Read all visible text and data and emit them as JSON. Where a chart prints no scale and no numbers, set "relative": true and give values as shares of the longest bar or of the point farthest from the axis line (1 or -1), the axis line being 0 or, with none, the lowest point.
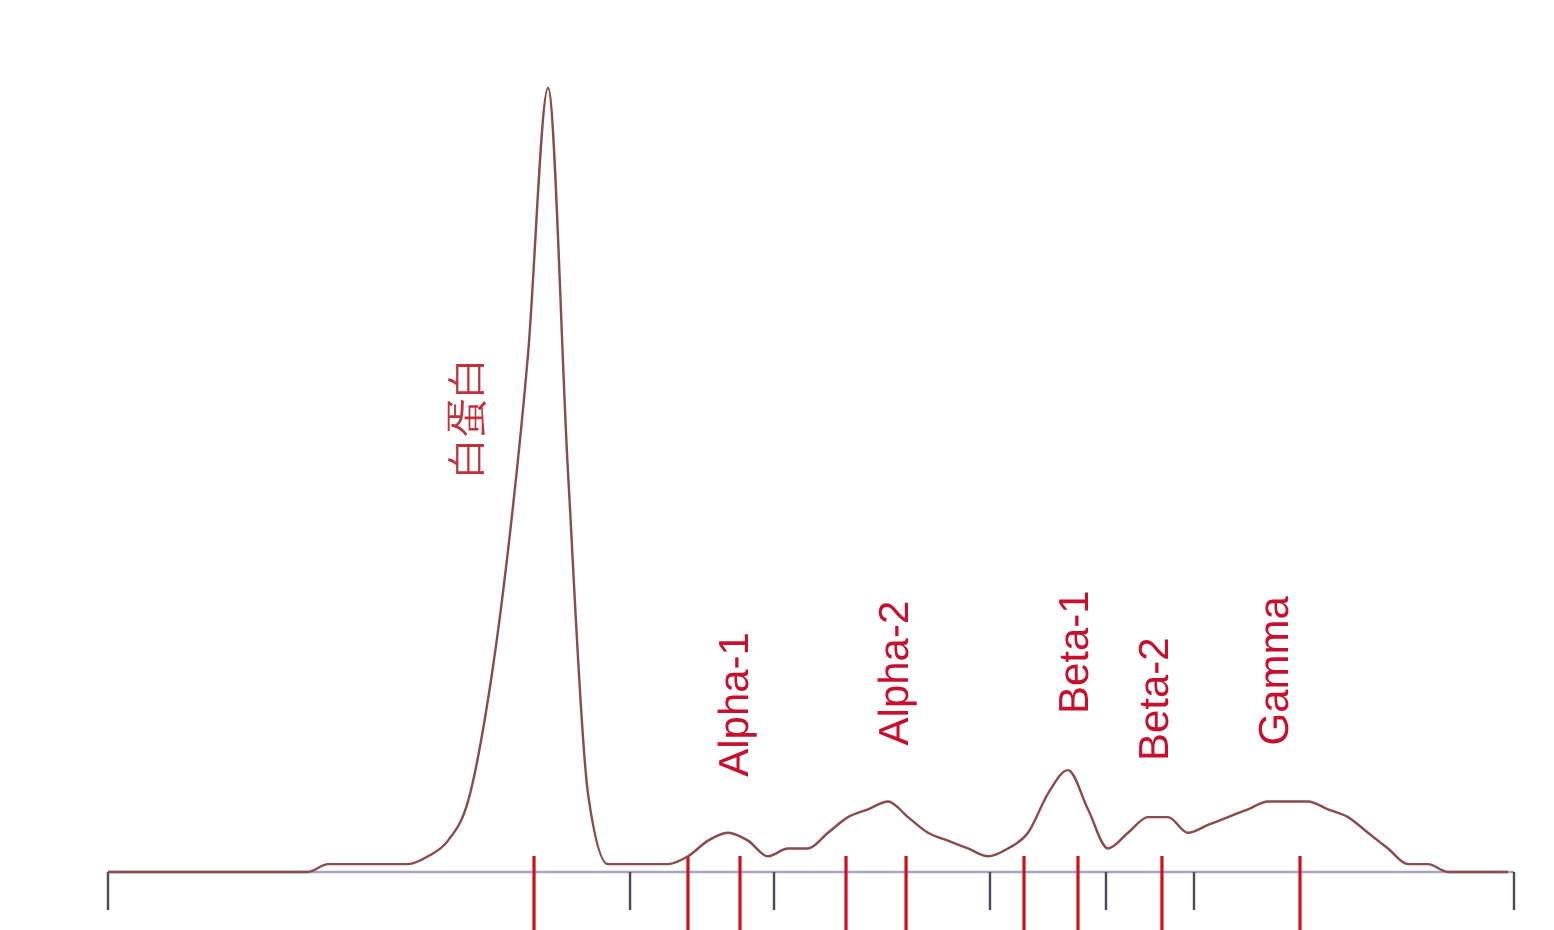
{
  "chart_data": {
    "type": "line",
    "relative": true,
    "categories": [
      null,
      null,
      null,
      null,
      null,
      null,
      null,
      null,
      null,
      null,
      null,
      null,
      null,
      null,
      null,
      null,
      null,
      null,
      null,
      null,
      null,
      null,
      null,
      null,
      null,
      null,
      null,
      null,
      null,
      null,
      null,
      null,
      null,
      null,
      null,
      null,
      null,
      null,
      null,
      null,
      null,
      null,
      null,
      null,
      null,
      null,
      null,
      null,
      null,
      null,
      null,
      null,
      null,
      null,
      null,
      null,
      null,
      null,
      null,
      null,
      null,
      null,
      null,
      null,
      null,
      null,
      null,
      null,
      null,
      null,
      null
    ],
    "series": [
      {
        "color": "#8a4b4b",
        "values": [
          0,
          0,
          0,
          0,
          0,
          0,
          0,
          0,
          0,
          0,
          0,
          0.01,
          0.01,
          0.01,
          0.01,
          0.01,
          0.02,
          0.04,
          0.09,
          0.22,
          0.41,
          0.66,
          1,
          0.51,
          0.1,
          0.01,
          0.01,
          0.01,
          0.01,
          0.02,
          0.04,
          0.05,
          0.04,
          0.02,
          0.03,
          0.03,
          0.05,
          0.07,
          0.08,
          0.09,
          0.07,
          0.05,
          0.04,
          0.03,
          0.02,
          0.03,
          0.05,
          0.1,
          0.13,
          0.08,
          0.03,
          0.05,
          0.07,
          0.07,
          0.05,
          0.06,
          0.07,
          0.08,
          0.09,
          0.09,
          0.09,
          0.08,
          0.07,
          0.05,
          0.03,
          0.01,
          0.01,
          0,
          0,
          0,
          0
        ]
      }
    ],
    "annotations": [
      "白蛋白",
      "Alpha-1",
      "Alpha-2",
      "Beta-1",
      "Beta-2",
      "Gamma"
    ],
    "marker": "none",
    "line_style": "solid"
  }
}
